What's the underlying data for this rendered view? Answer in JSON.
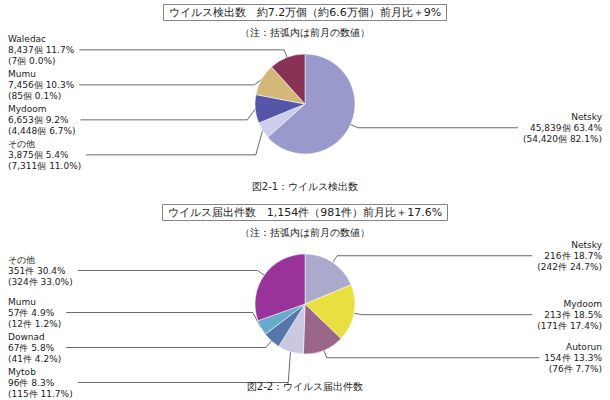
{
  "chart_data": [
    {
      "type": "pie",
      "title": "ウイルス検出数　約7.2万個（約6.6万個）前月比＋9%",
      "subtitle": "（注：括弧内は前月の数値）",
      "annotations": [
        "図2-1：ウイルス検出数"
      ],
      "categories": [
        "Netsky",
        "その他",
        "Mydoom",
        "Mumu",
        "Waledac"
      ],
      "values": [
        45839,
        3875,
        6653,
        7456,
        8437
      ],
      "value_labels": [
        "45,839個 63.4%\n(54,420個 82.1%)",
        "3,875個 5.4%\n(7,311個 11.0%)",
        "6,653個 9.2%\n(4,448個 6.7%)",
        "7,456個 10.3%\n(85個 0.1%)",
        "8,437個 11.7%\n(7個 0.0%)"
      ],
      "colors": [
        "#9999cc",
        "#ccccee",
        "#5555aa",
        "#d4b87a",
        "#883355"
      ],
      "data_labels": true
    },
    {
      "type": "pie",
      "title": "ウイルス届出件数　1,154件（981件）前月比＋17.6%",
      "subtitle": "（注：括弧内は前月の数値）",
      "annotations": [
        "図2-2：ウイルス届出件数"
      ],
      "categories": [
        "Netsky",
        "Mydoom",
        "Autorun",
        "Mytob",
        "Downad",
        "Mumu",
        "その他"
      ],
      "values": [
        216,
        213,
        154,
        96,
        67,
        57,
        351
      ],
      "value_labels": [
        "216件 18.7%\n(242件 24.7%)",
        "213件 18.5%\n(171件 17.4%)",
        "154件 13.3%\n(76件 7.7%)",
        "96件 8.3%\n(115件 11.7%)",
        "67件 5.8%\n(41件 4.2%)",
        "57件 4.9%\n(12件 1.2%)",
        "351件 30.4%\n(324件 33.0%)"
      ],
      "colors": [
        "#aaaacc",
        "#e8e040",
        "#996688",
        "#c8c8e0",
        "#5577aa",
        "#66aacc",
        "#993399"
      ],
      "data_labels": true
    }
  ]
}
